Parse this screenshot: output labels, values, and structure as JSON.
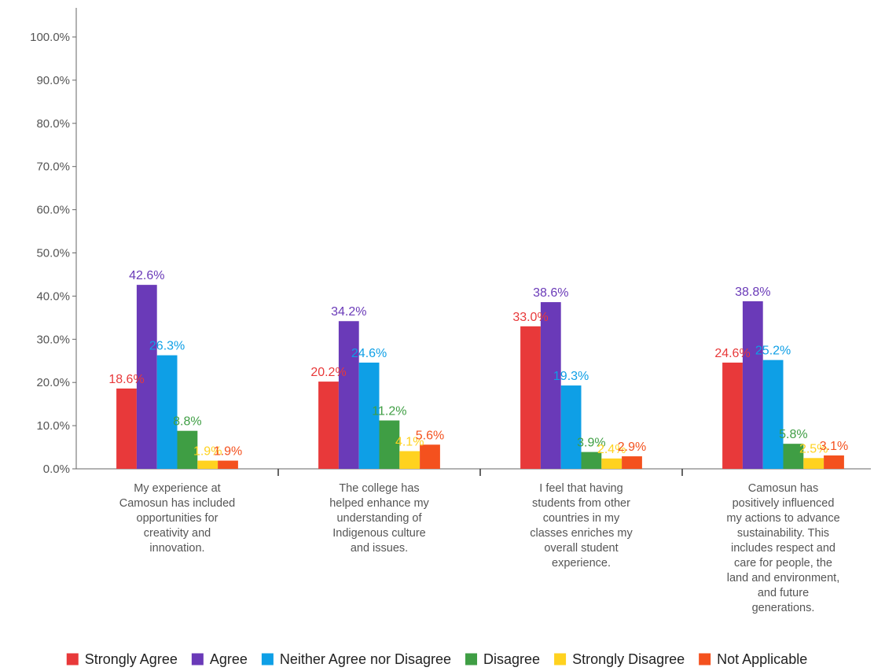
{
  "chart_data": {
    "type": "bar",
    "title": "",
    "xlabel": "",
    "ylabel": "",
    "ylim": [
      0,
      100
    ],
    "y_ticks": [
      "0.0%",
      "10.0%",
      "20.0%",
      "30.0%",
      "40.0%",
      "50.0%",
      "60.0%",
      "70.0%",
      "80.0%",
      "90.0%",
      "100.0%"
    ],
    "grid": false,
    "legend_position": "bottom",
    "categories": [
      [
        "My experience at",
        "Camosun has included",
        "opportunities for",
        "creativity and",
        "innovation."
      ],
      [
        "The college has",
        "helped enhance my",
        "understanding of",
        "Indigenous culture",
        "and issues."
      ],
      [
        "I feel that having",
        "students from other",
        "countries in my",
        "classes enriches my",
        "overall student",
        "experience."
      ],
      [
        "Camosun has",
        "positively influenced",
        "my actions to advance",
        "sustainability. This",
        "includes respect and",
        "care for people, the",
        "land and environment,",
        "and future",
        "generations."
      ]
    ],
    "series": [
      {
        "name": "Strongly Agree",
        "color": "#e8393a",
        "values": [
          18.6,
          20.2,
          33.0,
          24.6
        ],
        "labels": [
          "18.6%",
          "20.2%",
          "33.0%",
          "24.6%"
        ]
      },
      {
        "name": "Agree",
        "color": "#6a3ab8",
        "values": [
          42.6,
          34.2,
          38.6,
          38.8
        ],
        "labels": [
          "42.6%",
          "34.2%",
          "38.6%",
          "38.8%"
        ]
      },
      {
        "name": "Neither Agree nor Disagree",
        "color": "#0e9fe6",
        "values": [
          26.3,
          24.6,
          19.3,
          25.2
        ],
        "labels": [
          "26.3%",
          "24.6%",
          "19.3%",
          "25.2%"
        ]
      },
      {
        "name": "Disagree",
        "color": "#3f9e44",
        "values": [
          8.8,
          11.2,
          3.9,
          5.8
        ],
        "labels": [
          "8.8%",
          "11.2%",
          "3.9%",
          "5.8%"
        ]
      },
      {
        "name": "Strongly Disagree",
        "color": "#ffd21f",
        "values": [
          1.9,
          4.1,
          2.4,
          2.5
        ],
        "labels": [
          "1.9%",
          "4.1%",
          "2.4%",
          "2.5%"
        ]
      },
      {
        "name": "Not Applicable",
        "color": "#f4511e",
        "values": [
          1.9,
          5.6,
          2.9,
          3.1
        ],
        "labels": [
          "1.9%",
          "5.6%",
          "2.9%",
          "3.1%"
        ]
      }
    ]
  }
}
